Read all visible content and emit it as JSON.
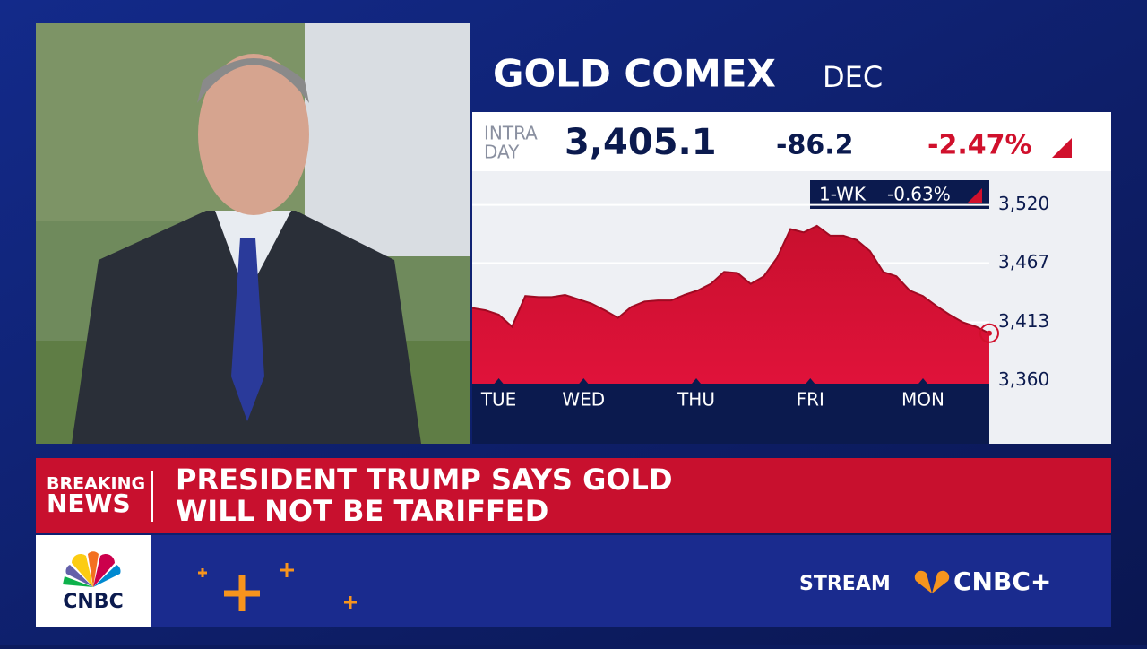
{
  "header": {
    "title": "GOLD COMEX",
    "contract": "DEC"
  },
  "quote": {
    "label": [
      "INTRA",
      "DAY"
    ],
    "price": "3,405.1",
    "change": "-86.2",
    "percent": "-2.47%"
  },
  "chart_data": {
    "type": "area",
    "badge": "1-WK",
    "badge_value": "-0.63%",
    "color": "#d0102c",
    "grid": true,
    "values": [
      3426,
      3424,
      3420,
      3409,
      3437,
      3436,
      3436,
      3438,
      3434,
      3430,
      3424,
      3417,
      3427,
      3432,
      3433,
      3433,
      3438,
      3442,
      3448,
      3459,
      3458,
      3448,
      3455,
      3472,
      3498,
      3495,
      3501,
      3492,
      3492,
      3488,
      3478,
      3459,
      3455,
      3442,
      3437,
      3428,
      3420,
      3413,
      3409,
      3403
    ],
    "xlim": [
      0,
      39
    ],
    "xticks": [
      {
        "value": 2,
        "label": "TUE"
      },
      {
        "value": 8.4,
        "label": "WED"
      },
      {
        "value": 16.9,
        "label": "THU"
      },
      {
        "value": 25.5,
        "label": "FRI"
      },
      {
        "value": 34,
        "label": "MON"
      }
    ],
    "ylim": [
      3357,
      3550
    ],
    "yticks": [
      {
        "value": 3360,
        "label": "3,360"
      },
      {
        "value": 3413,
        "label": "3,413"
      },
      {
        "value": 3467,
        "label": "3,467"
      },
      {
        "value": 3520,
        "label": "3,520"
      }
    ]
  },
  "ticker": {
    "label": [
      "BREAKING",
      "NEWS"
    ],
    "headline": [
      "PRESIDENT TRUMP SAYS GOLD",
      "WILL NOT BE TARIFFED"
    ]
  },
  "footer": {
    "logo": "CNBC",
    "stream": "STREAM",
    "brand": "CNBC+"
  }
}
